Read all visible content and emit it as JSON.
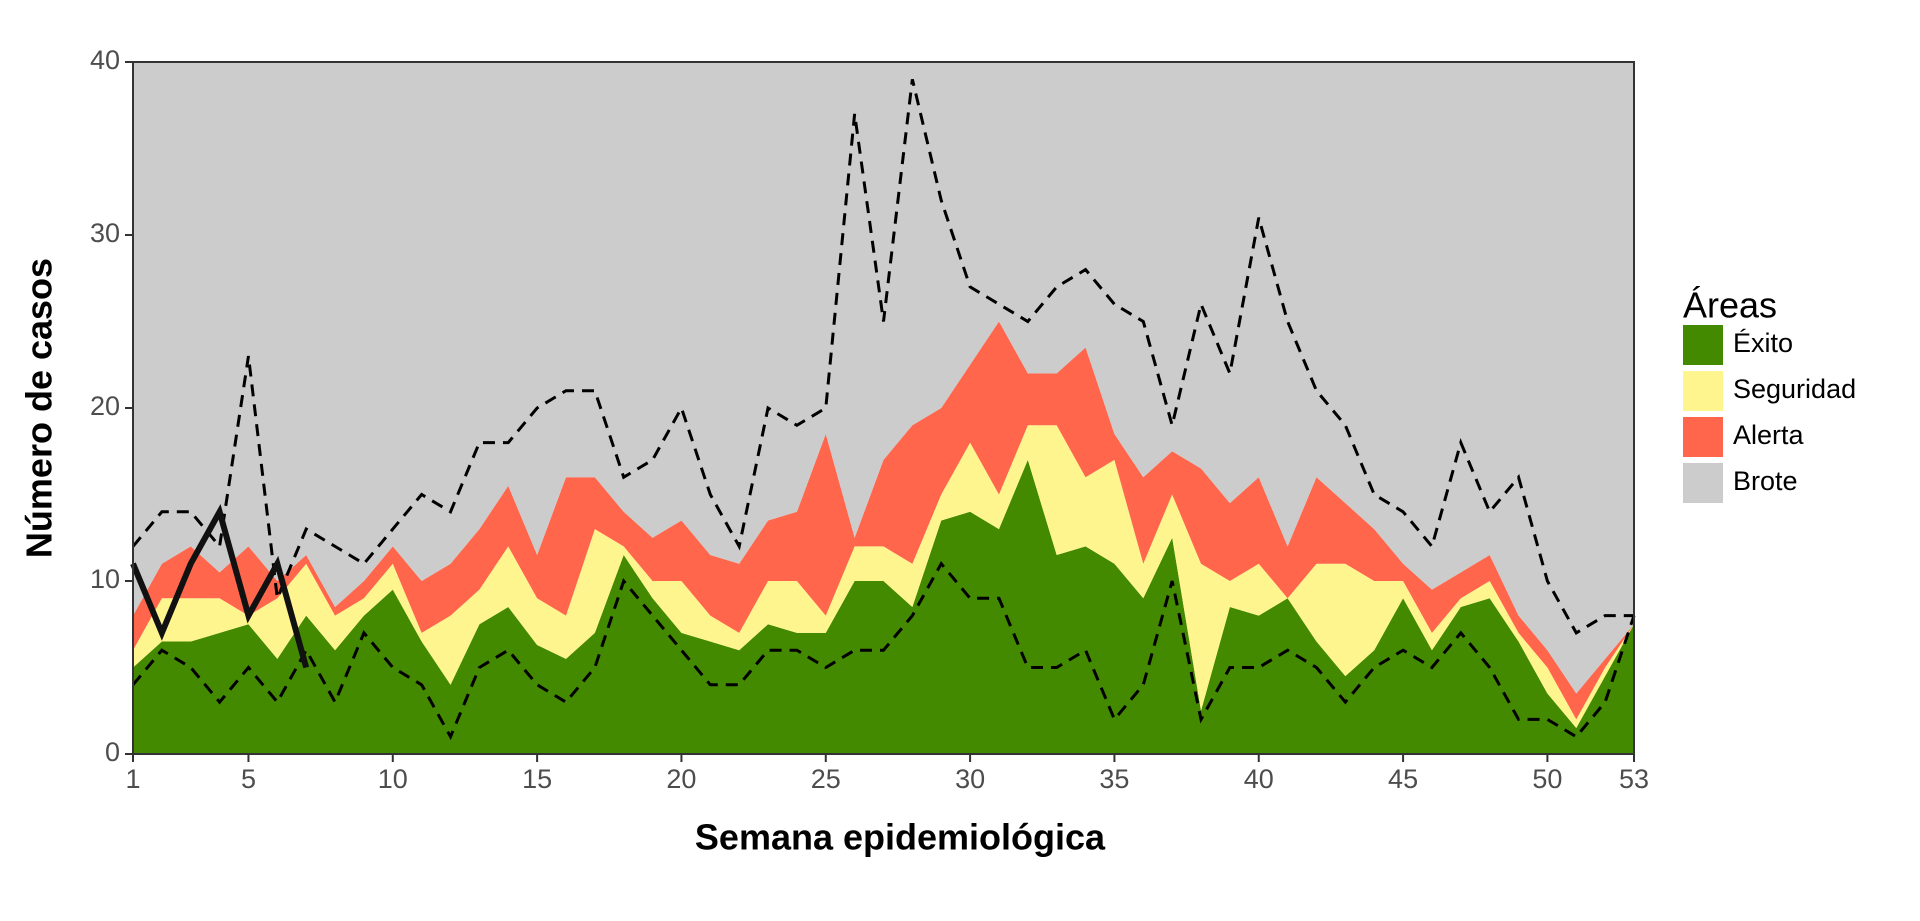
{
  "chart_data": {
    "type": "area",
    "xlabel": "Semana epidemiológica",
    "ylabel": "Número de casos",
    "x": [
      1,
      2,
      3,
      4,
      5,
      6,
      7,
      8,
      9,
      10,
      11,
      12,
      13,
      14,
      15,
      16,
      17,
      18,
      19,
      20,
      21,
      22,
      23,
      24,
      25,
      26,
      27,
      28,
      29,
      30,
      31,
      32,
      33,
      34,
      35,
      36,
      37,
      38,
      39,
      40,
      41,
      42,
      43,
      44,
      45,
      46,
      47,
      48,
      49,
      50,
      51,
      52,
      53
    ],
    "xlim": [
      1,
      53
    ],
    "xticks": [
      1,
      5,
      10,
      15,
      20,
      25,
      30,
      35,
      40,
      45,
      50,
      53
    ],
    "ylim": [
      0,
      40
    ],
    "yticks": [
      0,
      10,
      20,
      30,
      40
    ],
    "stacked": true,
    "legend_title": "Áreas",
    "legend": "right",
    "series": [
      {
        "name": "Éxito",
        "color": "#438a00",
        "values": [
          5,
          6.5,
          6.5,
          7,
          7.5,
          5.5,
          8,
          6,
          8,
          9.5,
          6.5,
          4,
          7.5,
          8.5,
          6.3,
          5.5,
          7,
          11.5,
          9,
          7,
          6.5,
          6,
          7.5,
          7,
          7,
          10,
          10,
          8.5,
          13.5,
          14,
          13,
          17,
          11.5,
          12,
          11,
          9,
          12.5,
          2.5,
          8.5,
          8,
          9,
          6.5,
          4.5,
          6,
          9,
          6,
          8.5,
          9,
          6.5,
          3.5,
          1.5,
          4.5,
          7.5
        ]
      },
      {
        "name": "Seguridad",
        "color": "#fff58f",
        "values": [
          1,
          2.5,
          2.5,
          2,
          0.5,
          3.5,
          3,
          2,
          1,
          1.5,
          0.5,
          4,
          2,
          3.5,
          2.7,
          2.5,
          6,
          0.5,
          1,
          3,
          1.5,
          1,
          2.5,
          3,
          1,
          2,
          2,
          2.5,
          1.5,
          4,
          2,
          2,
          7.5,
          4,
          6,
          2,
          2.5,
          8.5,
          1.5,
          3,
          0,
          4.5,
          6.5,
          4,
          1,
          1,
          0.5,
          1,
          0.5,
          1.5,
          0.5,
          0.5,
          0
        ]
      },
      {
        "name": "Alerta",
        "color": "#ff664b",
        "values": [
          2,
          2,
          3,
          1.5,
          4,
          1,
          0.5,
          0.5,
          1,
          1,
          3,
          3,
          3.5,
          3.5,
          2.5,
          8,
          3,
          2,
          2.5,
          3.5,
          3.5,
          4,
          3.5,
          4,
          10.5,
          0.5,
          5,
          8,
          5,
          4.5,
          10,
          3,
          3,
          7.5,
          1.5,
          5,
          2.5,
          5.5,
          4.5,
          5,
          3,
          5,
          3.5,
          3,
          1,
          2.5,
          1.5,
          1.5,
          1,
          1,
          1.5,
          0.5,
          0
        ]
      },
      {
        "name": "Brote",
        "color": "#cccccc"
      }
    ],
    "lines": [
      {
        "color": "#000000",
        "style": "dashed",
        "values": [
          12,
          14,
          14,
          12,
          23,
          9,
          13,
          12,
          11,
          13,
          15,
          14,
          18,
          18,
          20,
          21,
          21,
          16,
          17,
          20,
          15,
          12,
          20,
          19,
          20,
          37,
          25,
          39,
          32,
          27,
          26,
          25,
          27,
          28,
          26,
          25,
          19,
          26,
          22,
          31,
          25,
          21,
          19,
          15,
          14,
          12,
          18,
          14,
          16,
          10,
          7,
          8,
          8
        ]
      },
      {
        "color": "#000000",
        "style": "dashed",
        "values": [
          4,
          6,
          5,
          3,
          5,
          3,
          6,
          3,
          7,
          5,
          4,
          1,
          5,
          6,
          4,
          3,
          5,
          10,
          8,
          6,
          4,
          4,
          6,
          6,
          5,
          6,
          6,
          8,
          11,
          9,
          9,
          5,
          5,
          6,
          2,
          4,
          10,
          2,
          5,
          5,
          6,
          5,
          3,
          5,
          6,
          5,
          7,
          5,
          2,
          2,
          1,
          3,
          8
        ]
      },
      {
        "color": "#111111",
        "style": "solid",
        "values": [
          11,
          7,
          11,
          14,
          8,
          11,
          5,
          null,
          null,
          null,
          null,
          null,
          null,
          null,
          null,
          null,
          null,
          null,
          null,
          null,
          null,
          null,
          null,
          null,
          null,
          null,
          null,
          null,
          null,
          null,
          null,
          null,
          null,
          null,
          null,
          null,
          null,
          null,
          null,
          null,
          null,
          null,
          null,
          null,
          null,
          null,
          null,
          null,
          null,
          null,
          null,
          null,
          null
        ]
      }
    ]
  }
}
